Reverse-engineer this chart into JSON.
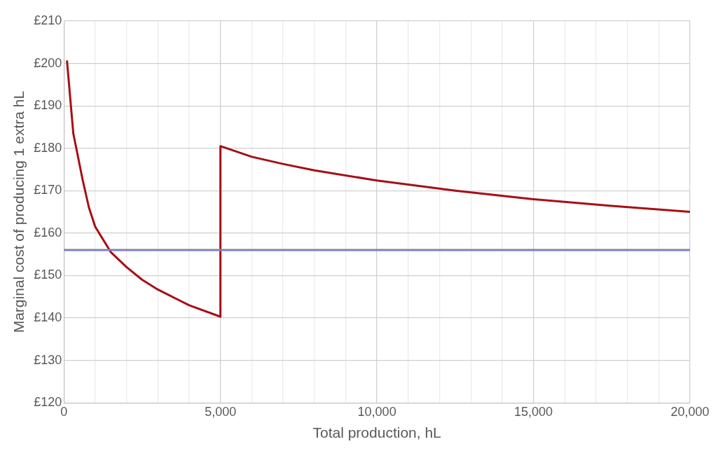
{
  "chart_data": {
    "type": "line",
    "xlabel": "Total production, hL",
    "ylabel": "Marginal cost of producing 1 extra hL",
    "series": [
      {
        "color": "#a50f15",
        "x": [
          100,
          300,
          600,
          800,
          1000,
          1500,
          2000,
          2500,
          3000,
          4000,
          5000,
          5000,
          6000,
          7000,
          8000,
          10000,
          12500,
          15000,
          17500,
          20000
        ],
        "values": [
          200.5,
          183.5,
          172.5,
          166,
          161.5,
          155.5,
          152,
          149,
          146.7,
          143,
          140.3,
          180.5,
          178,
          176.3,
          174.8,
          172.4,
          170,
          168,
          166.4,
          165
        ]
      }
    ],
    "ref_lines": [
      {
        "axis": "y",
        "value": 156,
        "color": "#7b7fc4"
      }
    ],
    "xlim": [
      0,
      20000
    ],
    "xticks": [
      {
        "value": 0,
        "label": "0"
      },
      {
        "value": 1000,
        "label": null
      },
      {
        "value": 2000,
        "label": null
      },
      {
        "value": 3000,
        "label": null
      },
      {
        "value": 4000,
        "label": null
      },
      {
        "value": 5000,
        "label": "5,000"
      },
      {
        "value": 6000,
        "label": null
      },
      {
        "value": 7000,
        "label": null
      },
      {
        "value": 8000,
        "label": null
      },
      {
        "value": 9000,
        "label": null
      },
      {
        "value": 10000,
        "label": "10,000"
      },
      {
        "value": 11000,
        "label": null
      },
      {
        "value": 12000,
        "label": null
      },
      {
        "value": 13000,
        "label": null
      },
      {
        "value": 14000,
        "label": null
      },
      {
        "value": 15000,
        "label": "15,000"
      },
      {
        "value": 16000,
        "label": null
      },
      {
        "value": 17000,
        "label": null
      },
      {
        "value": 18000,
        "label": null
      },
      {
        "value": 19000,
        "label": null
      },
      {
        "value": 20000,
        "label": "20,000"
      }
    ],
    "ylim": [
      120,
      210
    ],
    "yticks": [
      {
        "value": 120,
        "label": "£120"
      },
      {
        "value": 130,
        "label": "£130"
      },
      {
        "value": 140,
        "label": "£140"
      },
      {
        "value": 150,
        "label": "£150"
      },
      {
        "value": 160,
        "label": "£160"
      },
      {
        "value": 170,
        "label": "£170"
      },
      {
        "value": 180,
        "label": "£180"
      },
      {
        "value": 190,
        "label": "£190"
      },
      {
        "value": 200,
        "label": "£200"
      },
      {
        "value": 210,
        "label": "£210"
      }
    ],
    "grid": true,
    "legend": false,
    "marker": "none",
    "line_style": "solid"
  }
}
